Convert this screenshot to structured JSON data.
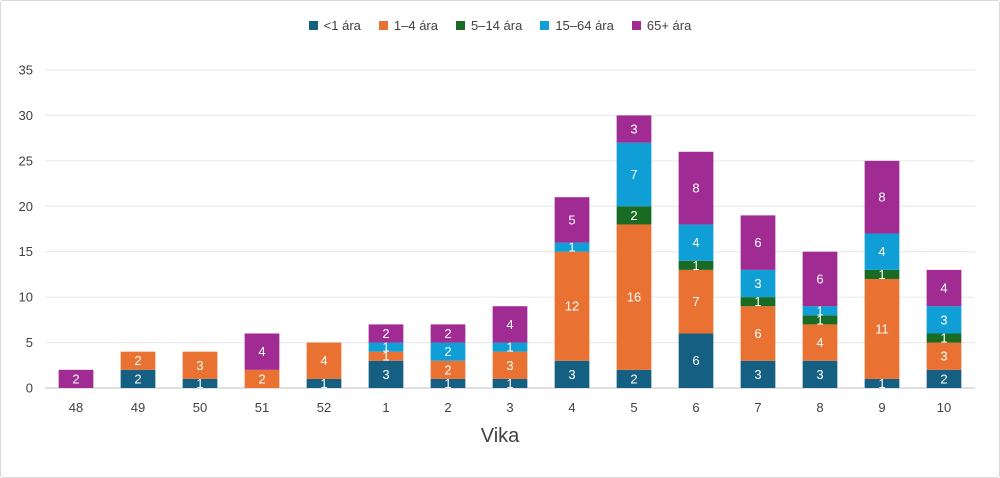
{
  "chart_data": {
    "type": "bar",
    "stacked": true,
    "title": "",
    "xlabel": "Vika",
    "ylabel": "",
    "ylim": [
      0,
      35
    ],
    "yticks": [
      0,
      5,
      10,
      15,
      20,
      25,
      30,
      35
    ],
    "grid": true,
    "legend_position": "top-center",
    "categories": [
      "48",
      "49",
      "50",
      "51",
      "52",
      "1",
      "2",
      "3",
      "4",
      "5",
      "6",
      "7",
      "8",
      "9",
      "10"
    ],
    "series": [
      {
        "name": "<1 ára",
        "color": "#156082",
        "values": [
          0,
          2,
          1,
          0,
          1,
          3,
          1,
          1,
          3,
          2,
          6,
          3,
          3,
          1,
          2
        ]
      },
      {
        "name": "1–4 ára",
        "color": "#E97132",
        "values": [
          0,
          2,
          3,
          2,
          4,
          1,
          2,
          3,
          12,
          16,
          7,
          6,
          4,
          11,
          3
        ]
      },
      {
        "name": "5–14 ára",
        "color": "#196B24",
        "values": [
          0,
          0,
          0,
          0,
          0,
          0,
          0,
          0,
          0,
          2,
          1,
          1,
          1,
          1,
          1
        ]
      },
      {
        "name": "15–64 ára",
        "color": "#0F9ED5",
        "values": [
          0,
          0,
          0,
          0,
          0,
          1,
          2,
          1,
          1,
          7,
          4,
          3,
          1,
          4,
          3
        ]
      },
      {
        "name": "65+ ára",
        "color": "#A02B93",
        "values": [
          2,
          0,
          0,
          4,
          0,
          2,
          2,
          4,
          5,
          3,
          8,
          6,
          6,
          8,
          4
        ]
      }
    ]
  }
}
